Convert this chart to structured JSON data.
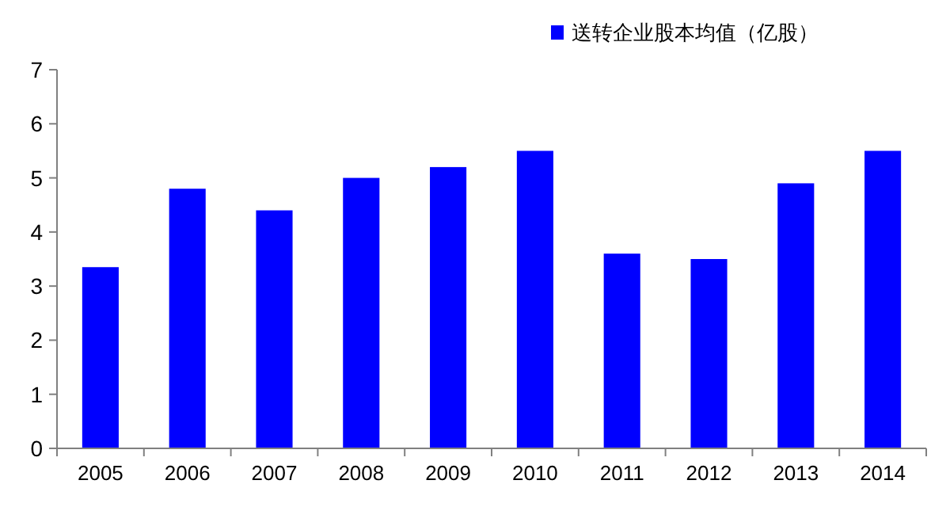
{
  "chart_data": {
    "type": "bar",
    "categories": [
      "2005",
      "2006",
      "2007",
      "2008",
      "2009",
      "2010",
      "2011",
      "2012",
      "2013",
      "2014"
    ],
    "series": [
      {
        "name": "送转企业股本均值（亿股）",
        "color": "#0000ff",
        "values": [
          3.35,
          4.8,
          4.4,
          5.0,
          5.2,
          5.5,
          3.6,
          3.5,
          4.9,
          5.5
        ]
      }
    ],
    "ylim": [
      0,
      7
    ],
    "yticks": [
      0,
      1,
      2,
      3,
      4,
      5,
      6,
      7
    ],
    "legend": "top right"
  }
}
